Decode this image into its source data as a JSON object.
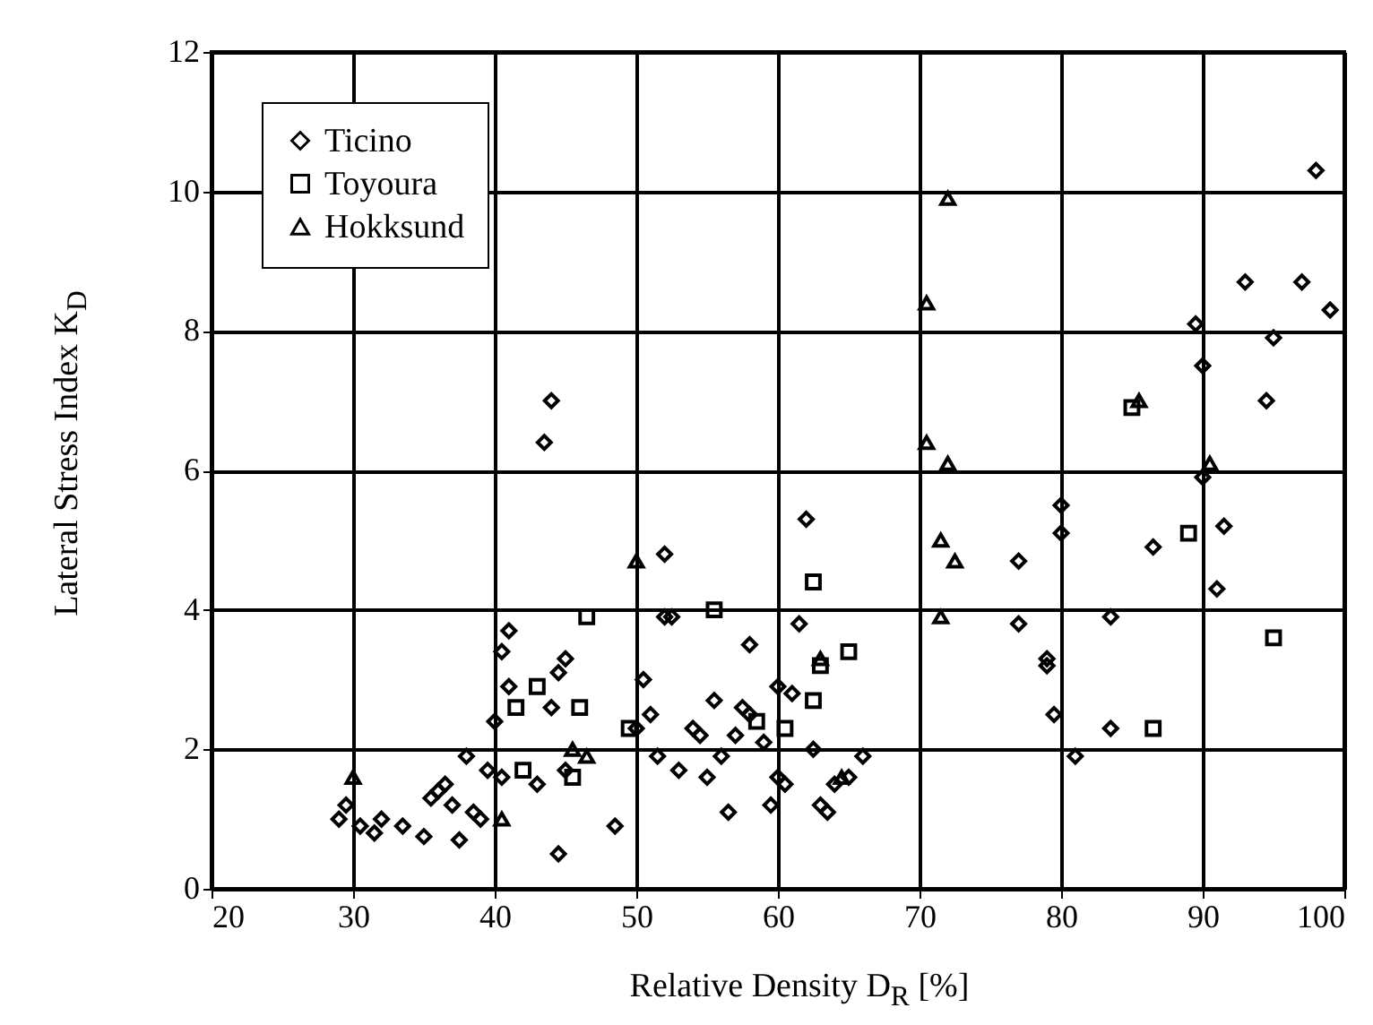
{
  "chart_data": {
    "type": "scatter",
    "xlabel": "Relative Density D$_{R}$ [%]",
    "ylabel": "Lateral Stress Index  K$_{D}$",
    "xlim": [
      20,
      100
    ],
    "xticks": [
      20,
      30,
      40,
      50,
      60,
      70,
      80,
      90,
      100
    ],
    "ylim": [
      0,
      12
    ],
    "yticks": [
      0,
      2,
      4,
      6,
      8,
      10,
      12
    ],
    "grid": true,
    "legend": "top left",
    "series": [
      {
        "name": "Ticino",
        "color": "#000000",
        "marker": "diamond",
        "x": [
          29,
          29.5,
          30.5,
          31.5,
          32,
          33.5,
          35,
          35.5,
          36,
          36.5,
          37,
          37.5,
          38,
          38.5,
          39,
          39.5,
          40,
          40.5,
          40.5,
          41,
          41,
          43,
          43.5,
          44,
          44,
          44.5,
          45,
          44.5,
          45,
          48.5,
          50,
          50.5,
          51,
          51.5,
          52,
          52,
          52.5,
          53,
          54,
          54.5,
          55,
          55.5,
          56,
          56.5,
          57,
          57.5,
          58,
          58,
          59,
          59.5,
          60,
          60,
          60.5,
          61,
          61.5,
          62,
          62.5,
          63,
          63.5,
          64,
          65,
          66,
          77,
          77,
          79,
          79,
          79.5,
          80,
          80,
          81,
          83.5,
          83.5,
          86.5,
          89.5,
          90,
          90,
          91,
          91.5,
          93,
          94.5,
          95,
          97,
          98,
          99
        ],
        "values": [
          1.0,
          1.2,
          0.9,
          0.8,
          1.0,
          0.9,
          0.75,
          1.3,
          1.4,
          1.5,
          1.2,
          0.7,
          1.9,
          1.1,
          1.0,
          1.7,
          2.4,
          3.4,
          1.6,
          3.7,
          2.9,
          1.5,
          6.4,
          7.0,
          2.6,
          3.1,
          3.3,
          0.5,
          1.7,
          0.9,
          2.3,
          3.0,
          2.5,
          1.9,
          4.8,
          3.9,
          3.9,
          1.7,
          2.3,
          2.2,
          1.6,
          2.7,
          1.9,
          1.1,
          2.2,
          2.6,
          3.5,
          2.5,
          2.1,
          1.2,
          1.6,
          2.9,
          1.5,
          2.8,
          3.8,
          5.3,
          2.0,
          1.2,
          1.1,
          1.5,
          1.6,
          1.9,
          4.7,
          3.8,
          3.3,
          3.2,
          2.5,
          5.5,
          5.1,
          1.9,
          2.3,
          3.9,
          4.9,
          8.1,
          5.9,
          7.5,
          4.3,
          5.2,
          8.7,
          7.0,
          7.9,
          8.7,
          10.3,
          8.3
        ]
      },
      {
        "name": "Toyoura",
        "color": "#000000",
        "marker": "square",
        "x": [
          41.5,
          42,
          43,
          45.5,
          46,
          46.5,
          49.5,
          55.5,
          58.5,
          60.5,
          62.5,
          62.5,
          63,
          65,
          85,
          86.5,
          89,
          95
        ],
        "values": [
          2.6,
          1.7,
          2.9,
          1.6,
          2.6,
          3.9,
          2.3,
          4.0,
          2.4,
          2.3,
          4.4,
          2.7,
          3.2,
          3.4,
          6.9,
          2.3,
          5.1,
          3.6
        ]
      },
      {
        "name": "Hokksund",
        "color": "#000000",
        "marker": "triangle",
        "x": [
          30,
          40.5,
          45.5,
          46.5,
          50,
          63,
          64.5,
          70.5,
          70.5,
          71.5,
          72.5,
          72,
          72,
          71.5,
          85.5,
          90.5
        ],
        "values": [
          1.6,
          1.0,
          2.0,
          1.9,
          4.7,
          3.3,
          1.6,
          8.4,
          6.4,
          5.0,
          4.7,
          9.9,
          6.1,
          3.9,
          7.0,
          6.1
        ]
      }
    ]
  }
}
